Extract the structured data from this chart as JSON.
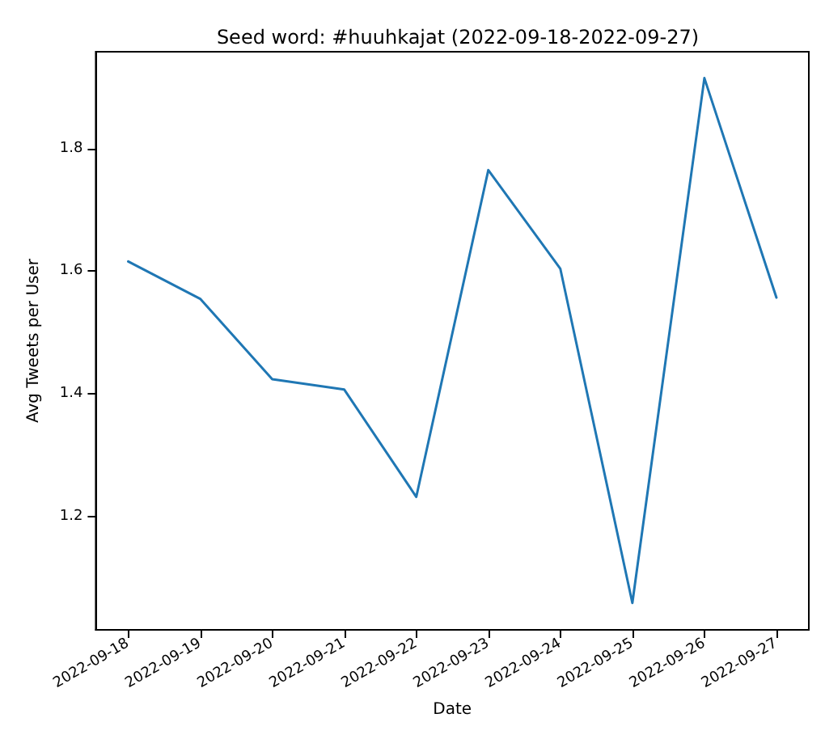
{
  "chart_data": {
    "type": "line",
    "title": "Seed word: #huuhkajat (2022-09-18-2022-09-27)",
    "xlabel": "Date",
    "ylabel": "Avg Tweets per User",
    "x": [
      "2022-09-18",
      "2022-09-19",
      "2022-09-20",
      "2022-09-21",
      "2022-09-22",
      "2022-09-23",
      "2022-09-24",
      "2022-09-25",
      "2022-09-26",
      "2022-09-27"
    ],
    "series": [
      {
        "color": "#1f77b4",
        "values": [
          1.616,
          1.555,
          1.424,
          1.407,
          1.232,
          1.765,
          1.604,
          1.059,
          1.915,
          1.557
        ]
      }
    ],
    "xlim": [
      "2022-09-17T13:12",
      "2022-09-27T10:48"
    ],
    "xticks": [
      "2022-09-18",
      "2022-09-19",
      "2022-09-20",
      "2022-09-21",
      "2022-09-22",
      "2022-09-23",
      "2022-09-24",
      "2022-09-25",
      "2022-09-26",
      "2022-09-27"
    ],
    "ylim": [
      1.015,
      1.958
    ],
    "yticks": [
      1.2,
      1.4,
      1.6,
      1.8
    ],
    "grid": false,
    "marker": "none",
    "line_style": "solid"
  }
}
